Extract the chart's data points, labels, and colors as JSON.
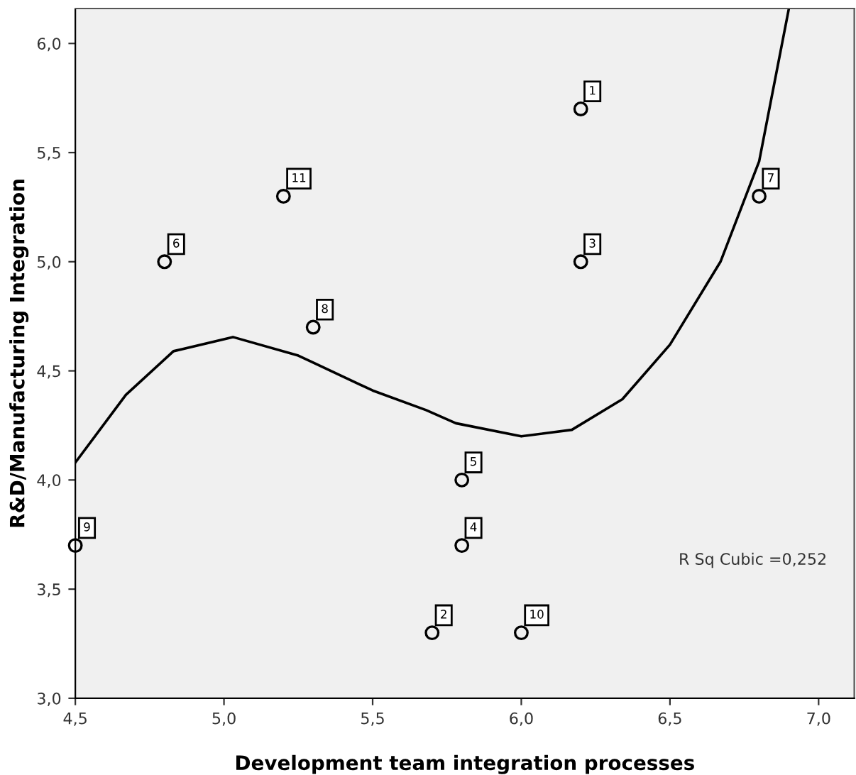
{
  "chart_data": {
    "type": "scatter",
    "xlabel": "Development team integration processes",
    "ylabel": "R&D/Manufacturing Integration",
    "xlim": [
      4.5,
      7.12
    ],
    "ylim": [
      3.0,
      6.16
    ],
    "xticks": [
      {
        "value": 4.5,
        "label": "4,5"
      },
      {
        "value": 5.0,
        "label": "5,0"
      },
      {
        "value": 5.5,
        "label": "5,5"
      },
      {
        "value": 6.0,
        "label": "6,0"
      },
      {
        "value": 6.5,
        "label": "6,5"
      },
      {
        "value": 7.0,
        "label": "7,0"
      }
    ],
    "yticks": [
      {
        "value": 3.0,
        "label": "3,0"
      },
      {
        "value": 3.5,
        "label": "3,5"
      },
      {
        "value": 4.0,
        "label": "4,0"
      },
      {
        "value": 4.5,
        "label": "4,5"
      },
      {
        "value": 5.0,
        "label": "5,0"
      },
      {
        "value": 5.5,
        "label": "5,5"
      },
      {
        "value": 6.0,
        "label": "6,0"
      }
    ],
    "grid": false,
    "legend": false,
    "series": [
      {
        "marker": "circle",
        "color": "#000000",
        "x": [
          6.2,
          5.7,
          6.2,
          5.8,
          5.8,
          4.8,
          6.8,
          5.3,
          4.5,
          6.0,
          5.2
        ],
        "values": [
          5.7,
          3.3,
          5.0,
          3.7,
          4.0,
          5.0,
          5.3,
          4.7,
          3.7,
          3.3,
          5.3
        ]
      },
      {
        "type": "line",
        "marker": "none",
        "color": "#000000",
        "x": [
          4.5,
          4.67,
          4.83,
          5.03,
          5.25,
          5.5,
          5.68,
          5.78,
          6.0,
          6.17,
          6.34,
          6.5,
          6.67,
          6.8,
          6.9
        ],
        "values": [
          4.08,
          4.39,
          4.59,
          4.655,
          4.57,
          4.41,
          4.32,
          4.26,
          4.2,
          4.23,
          4.37,
          4.62,
          5.0,
          5.46,
          6.16
        ]
      }
    ],
    "annotations": [
      {
        "text": "1",
        "x": 6.2,
        "y": 5.7
      },
      {
        "text": "2",
        "x": 5.7,
        "y": 3.3
      },
      {
        "text": "3",
        "x": 6.2,
        "y": 5.0
      },
      {
        "text": "4",
        "x": 5.8,
        "y": 3.7
      },
      {
        "text": "5",
        "x": 5.8,
        "y": 4.0
      },
      {
        "text": "6",
        "x": 4.8,
        "y": 5.0
      },
      {
        "text": "7",
        "x": 6.8,
        "y": 5.3
      },
      {
        "text": "8",
        "x": 5.3,
        "y": 4.7
      },
      {
        "text": "9",
        "x": 4.5,
        "y": 3.7
      },
      {
        "text": "10",
        "x": 6.0,
        "y": 3.3
      },
      {
        "text": "11",
        "x": 5.2,
        "y": 5.3
      },
      "R Sq Cubic =0,252"
    ]
  }
}
